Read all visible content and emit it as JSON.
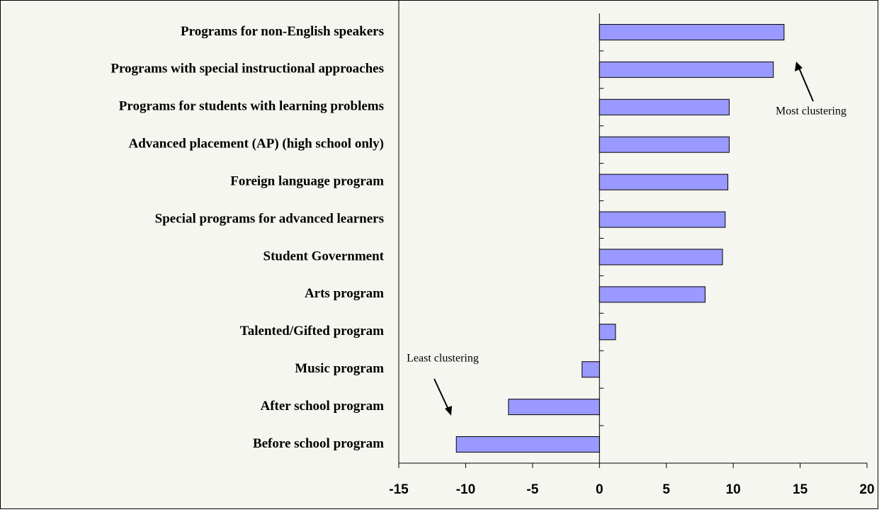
{
  "chart_data": {
    "type": "hbar",
    "categories": [
      "Programs for non-English speakers",
      "Programs with special instructional approaches",
      "Programs for students with learning problems",
      "Advanced placement (AP) (high school only)",
      "Foreign language program",
      "Special programs for advanced learners",
      "Student Government",
      "Arts program",
      "Talented/Gifted program",
      "Music program",
      "After school program",
      "Before school program"
    ],
    "values": [
      13.8,
      13.0,
      9.7,
      9.7,
      9.6,
      9.4,
      9.2,
      7.9,
      1.2,
      -1.3,
      -6.8,
      -10.7
    ],
    "color": "#9999ff",
    "xlim": [
      -15,
      20
    ],
    "xticks": [
      -15,
      -10,
      -5,
      0,
      5,
      10,
      15,
      20
    ],
    "annotations": [
      "Most clustering",
      "Least clustering"
    ]
  }
}
